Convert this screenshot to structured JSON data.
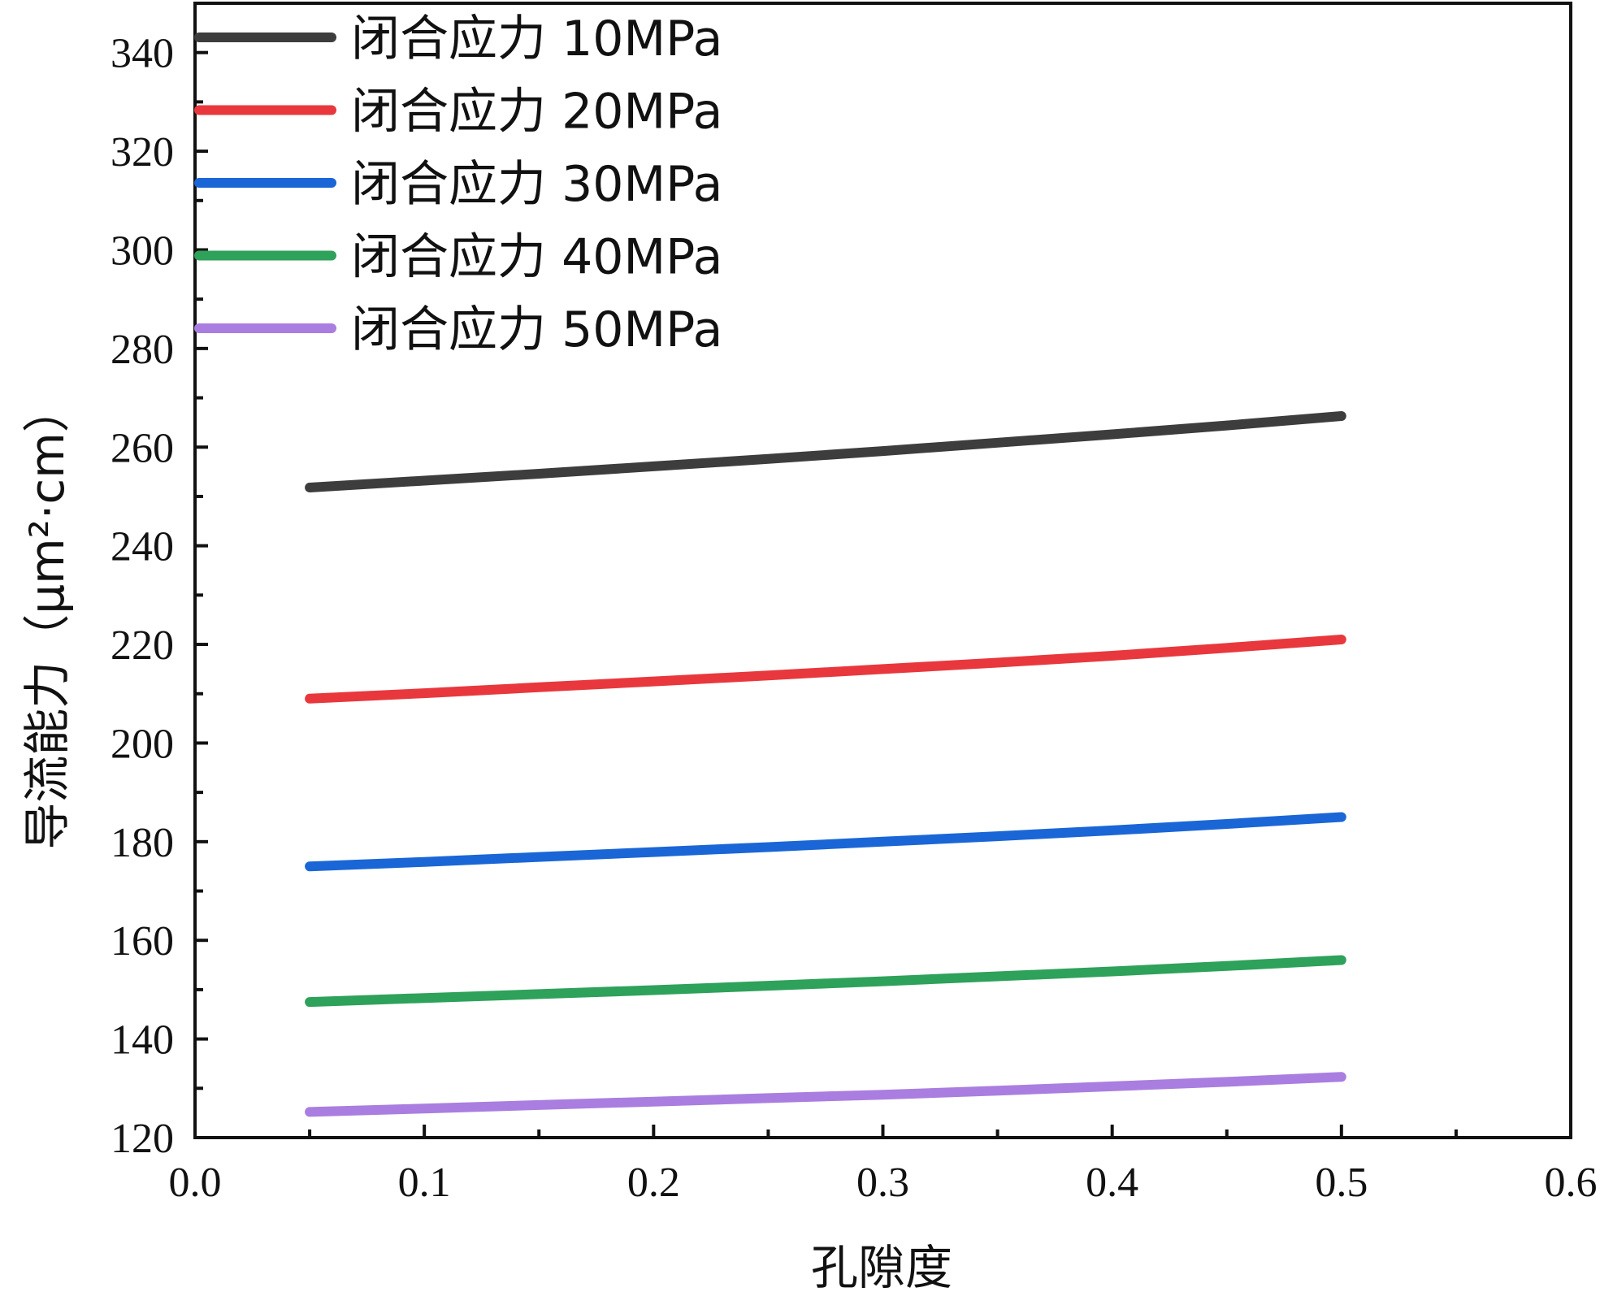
{
  "chart_data": {
    "type": "line",
    "xlabel": "孔隙度",
    "ylabel": "导流能力（μm²·cm）",
    "xlim": [
      0.0,
      0.6
    ],
    "ylim": [
      120,
      350
    ],
    "xticks": [
      "0.0",
      "0.1",
      "0.2",
      "0.3",
      "0.4",
      "0.5",
      "0.6"
    ],
    "yticks": [
      "120",
      "140",
      "160",
      "180",
      "200",
      "220",
      "240",
      "260",
      "280",
      "300",
      "320",
      "340"
    ],
    "x": [
      0.05,
      0.1,
      0.15,
      0.2,
      0.25,
      0.3,
      0.35,
      0.4,
      0.45,
      0.5
    ],
    "series": [
      {
        "name": "闭合应力 10MPa",
        "color": "#3d3d3d",
        "values": [
          251.8,
          253.2,
          254.6,
          256.1,
          257.6,
          259.2,
          260.9,
          262.6,
          264.4,
          266.3
        ]
      },
      {
        "name": "闭合应力 20MPa",
        "color": "#e8383d",
        "values": [
          209.0,
          210.1,
          211.3,
          212.5,
          213.7,
          215.0,
          216.3,
          217.7,
          219.3,
          221.0
        ]
      },
      {
        "name": "闭合应力 30MPa",
        "color": "#1a66d6",
        "values": [
          175.0,
          175.9,
          176.9,
          177.9,
          178.9,
          180.0,
          181.1,
          182.3,
          183.6,
          185.0
        ]
      },
      {
        "name": "闭合应力 40MPa",
        "color": "#2ea15a",
        "values": [
          147.5,
          148.3,
          149.1,
          149.9,
          150.8,
          151.7,
          152.7,
          153.7,
          154.8,
          156.0
        ]
      },
      {
        "name": "闭合应力 50MPa",
        "color": "#a97ee0",
        "values": [
          125.2,
          125.9,
          126.6,
          127.3,
          128.0,
          128.7,
          129.5,
          130.4,
          131.3,
          132.3
        ]
      }
    ],
    "legend_position": "top-left",
    "grid": false
  }
}
